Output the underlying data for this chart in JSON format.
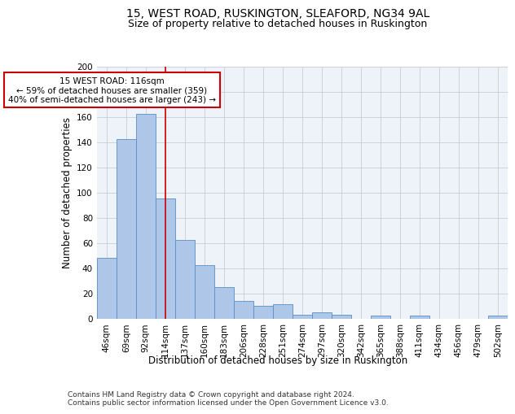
{
  "title1": "15, WEST ROAD, RUSKINGTON, SLEAFORD, NG34 9AL",
  "title2": "Size of property relative to detached houses in Ruskington",
  "xlabel": "Distribution of detached houses by size in Ruskington",
  "ylabel": "Number of detached properties",
  "categories": [
    "46sqm",
    "69sqm",
    "92sqm",
    "114sqm",
    "137sqm",
    "160sqm",
    "183sqm",
    "206sqm",
    "228sqm",
    "251sqm",
    "274sqm",
    "297sqm",
    "320sqm",
    "342sqm",
    "365sqm",
    "388sqm",
    "411sqm",
    "434sqm",
    "456sqm",
    "479sqm",
    "502sqm"
  ],
  "values": [
    48,
    142,
    162,
    95,
    62,
    42,
    25,
    14,
    10,
    11,
    3,
    5,
    3,
    0,
    2,
    0,
    2,
    0,
    0,
    0,
    2
  ],
  "bar_color": "#aec6e8",
  "bar_edge_color": "#5a8fc2",
  "vline_x": 3.0,
  "vline_color": "#cc0000",
  "annotation_text": "15 WEST ROAD: 116sqm\n← 59% of detached houses are smaller (359)\n40% of semi-detached houses are larger (243) →",
  "annotation_box_color": "white",
  "annotation_box_edge_color": "#cc0000",
  "ylim": [
    0,
    200
  ],
  "yticks": [
    0,
    20,
    40,
    60,
    80,
    100,
    120,
    140,
    160,
    180,
    200
  ],
  "grid_color": "#cccccc",
  "bg_color": "#eef2f9",
  "footer": "Contains HM Land Registry data © Crown copyright and database right 2024.\nContains public sector information licensed under the Open Government Licence v3.0.",
  "title1_fontsize": 10,
  "title2_fontsize": 9,
  "xlabel_fontsize": 8.5,
  "ylabel_fontsize": 8.5,
  "tick_fontsize": 7.5,
  "annotation_fontsize": 7.5,
  "footer_fontsize": 6.5
}
